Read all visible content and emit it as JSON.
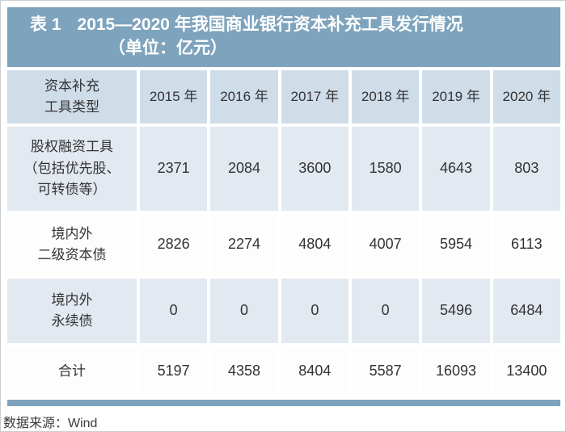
{
  "title": {
    "table_no": "表 1",
    "line1": "2015—2020 年我国商业银行资本补充工具发行情况",
    "line2": "（单位：亿元）"
  },
  "table": {
    "corner_label": "资本补充\n工具类型",
    "columns": [
      "2015 年",
      "2016 年",
      "2017 年",
      "2018 年",
      "2019 年",
      "2020 年"
    ],
    "rows": [
      {
        "label": "股权融资工具\n（包括优先股、\n可转债等）",
        "values": [
          2371,
          2084,
          3600,
          1580,
          4643,
          803
        ]
      },
      {
        "label": "境内外\n二级资本债",
        "values": [
          2826,
          2274,
          4804,
          4007,
          5954,
          6113
        ]
      },
      {
        "label": "境内外\n永续债",
        "values": [
          0,
          0,
          0,
          0,
          5496,
          6484
        ]
      },
      {
        "label": "合计",
        "values": [
          5197,
          4358,
          8404,
          5587,
          16093,
          13400
        ]
      }
    ]
  },
  "footer": {
    "source": "数据来源：Wind"
  },
  "colors": {
    "title_bg": "#7ea3bd",
    "header_bg": "#cfdde9",
    "row_alt_bg": "#e3e9f1",
    "row_white_bg": "#fdfdfd",
    "accent_bar": "#7ea3bd",
    "text": "#333333",
    "title_text": "#ffffff"
  },
  "chart_data": {
    "type": "table",
    "title": "表 1 2015—2020 年我国商业银行资本补充工具发行情况（单位：亿元）",
    "columns": [
      "资本补充工具类型",
      "2015 年",
      "2016 年",
      "2017 年",
      "2018 年",
      "2019 年",
      "2020 年"
    ],
    "rows": [
      [
        "股权融资工具（包括优先股、可转债等）",
        2371,
        2084,
        3600,
        1580,
        4643,
        803
      ],
      [
        "境内外二级资本债",
        2826,
        2274,
        4804,
        4007,
        5954,
        6113
      ],
      [
        "境内外永续债",
        0,
        0,
        0,
        0,
        5496,
        6484
      ],
      [
        "合计",
        5197,
        4358,
        8404,
        5587,
        16093,
        13400
      ]
    ],
    "source": "数据来源：Wind"
  }
}
